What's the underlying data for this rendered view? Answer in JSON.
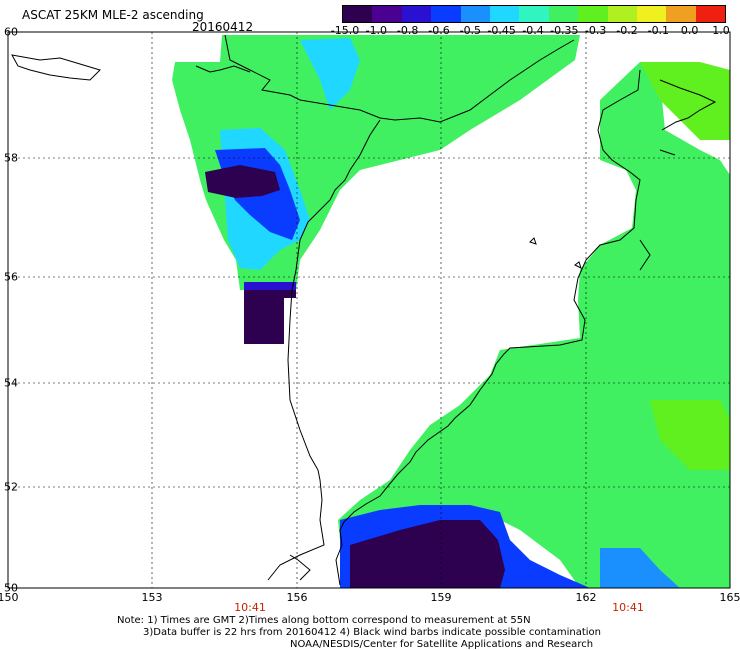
{
  "title": "ASCAT 25KM MLE-2 ascending",
  "date": "20160412",
  "colorbar": {
    "labels": [
      "-15.0",
      "-1.0",
      "-0.8",
      "-0.6",
      "-0.5",
      "-0.45",
      "-0.4",
      "-0.35",
      "-0.3",
      "-0.2",
      "-0.1",
      "0.0",
      "1.0"
    ],
    "colors": [
      "#2d0050",
      "#4a0090",
      "#2a10d0",
      "#0a3cff",
      "#1a90ff",
      "#20d8ff",
      "#30f5c0",
      "#40f060",
      "#60f020",
      "#b0f020",
      "#f0f020",
      "#f0a020",
      "#f02010"
    ]
  },
  "axes": {
    "lon_labels": [
      "150",
      "153",
      "156",
      "159",
      "162",
      "165"
    ],
    "lat_labels": [
      "60",
      "58",
      "56",
      "54",
      "52",
      "50"
    ]
  },
  "times": [
    "10:41",
    "10:41"
  ],
  "notes": {
    "line1": "Note: 1) Times are GMT 2)Times along bottom correspond to measurement at 55N",
    "line2": "3)Data buffer is 22 hrs from 20160412 4) Black wind barbs indicate possible contamination",
    "line3": "NOAA/NESDIS/Center for Satellite Applications and Research"
  }
}
